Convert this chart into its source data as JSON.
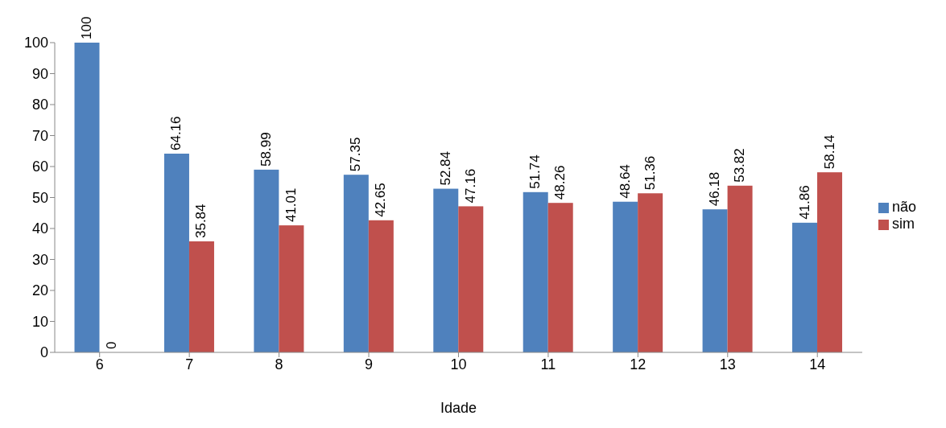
{
  "chart_data": {
    "type": "bar",
    "xlabel": "Idade",
    "categories": [
      "6",
      "7",
      "8",
      "9",
      "10",
      "11",
      "12",
      "13",
      "14"
    ],
    "series": [
      {
        "name": "não",
        "color": "#4f81bd",
        "values": [
          100,
          64.16,
          58.99,
          57.35,
          52.84,
          51.74,
          48.64,
          46.18,
          41.86
        ]
      },
      {
        "name": "sim",
        "color": "#c0504d",
        "values": [
          0,
          35.84,
          41.01,
          42.65,
          47.16,
          48.26,
          51.36,
          53.82,
          58.14
        ]
      }
    ],
    "ylim": [
      0,
      100
    ],
    "yticks": [
      0,
      10,
      20,
      30,
      40,
      50,
      60,
      70,
      80,
      90,
      100
    ],
    "grid": false,
    "legend": "right",
    "data_labels": true
  }
}
